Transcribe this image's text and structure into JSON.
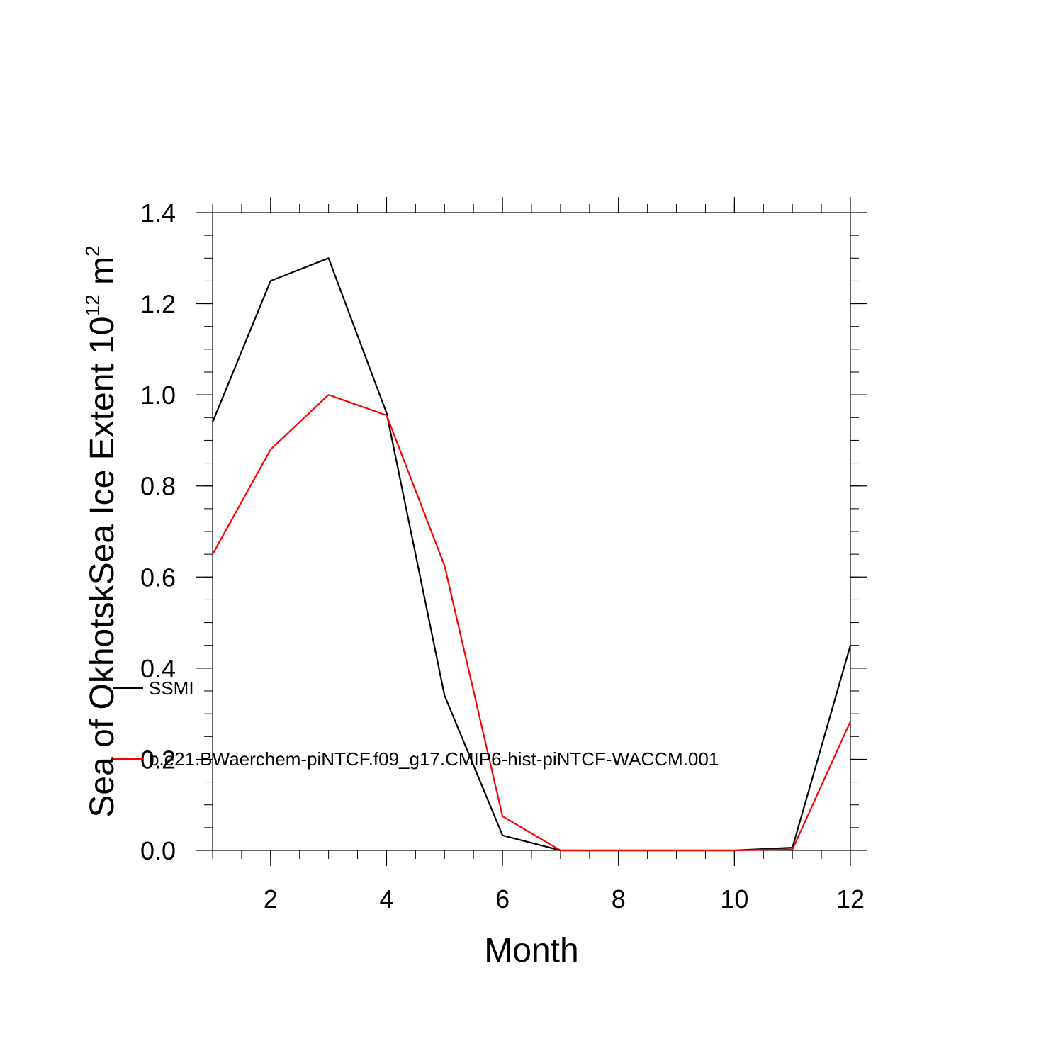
{
  "chart_data": {
    "type": "line",
    "xlabel": "Month",
    "ylabel": "Sea of OkhotskSea Ice Extent 10",
    "ylabel_exponent": "12",
    "ylabel_unit": " m",
    "ylabel_unit_exponent": "2",
    "xlim": [
      1,
      12
    ],
    "ylim": [
      0,
      1.4
    ],
    "x_ticks": [
      2,
      4,
      6,
      8,
      10,
      12
    ],
    "x_tick_labels": [
      "2",
      "4",
      "6",
      "8",
      "10",
      "12"
    ],
    "y_ticks": [
      0,
      0.2,
      0.4,
      0.6,
      0.8,
      1.0,
      1.2,
      1.4
    ],
    "y_tick_labels": [
      "0.0",
      "0.2",
      "0.4",
      "0.6",
      "0.8",
      "1.0",
      "1.2",
      "1.4"
    ],
    "x": [
      1,
      2,
      3,
      4,
      5,
      6,
      7,
      8,
      9,
      10,
      11,
      12
    ],
    "series": [
      {
        "name": "SSMI",
        "color": "#000000",
        "values": [
          0.94,
          1.25,
          1.3,
          0.96,
          0.34,
          0.033,
          0.0,
          0.0,
          0.0,
          0.0,
          0.006,
          0.45
        ]
      },
      {
        "name": "b.e21.BWaerchem-piNTCF.f09_g17.CMIP6-hist-piNTCF-WACCM.001",
        "color": "#ff0000",
        "values": [
          0.65,
          0.88,
          1.0,
          0.955,
          0.625,
          0.075,
          0.0,
          0.0,
          0.0,
          0.0,
          0.002,
          0.283
        ]
      }
    ],
    "legend_position": "left"
  }
}
